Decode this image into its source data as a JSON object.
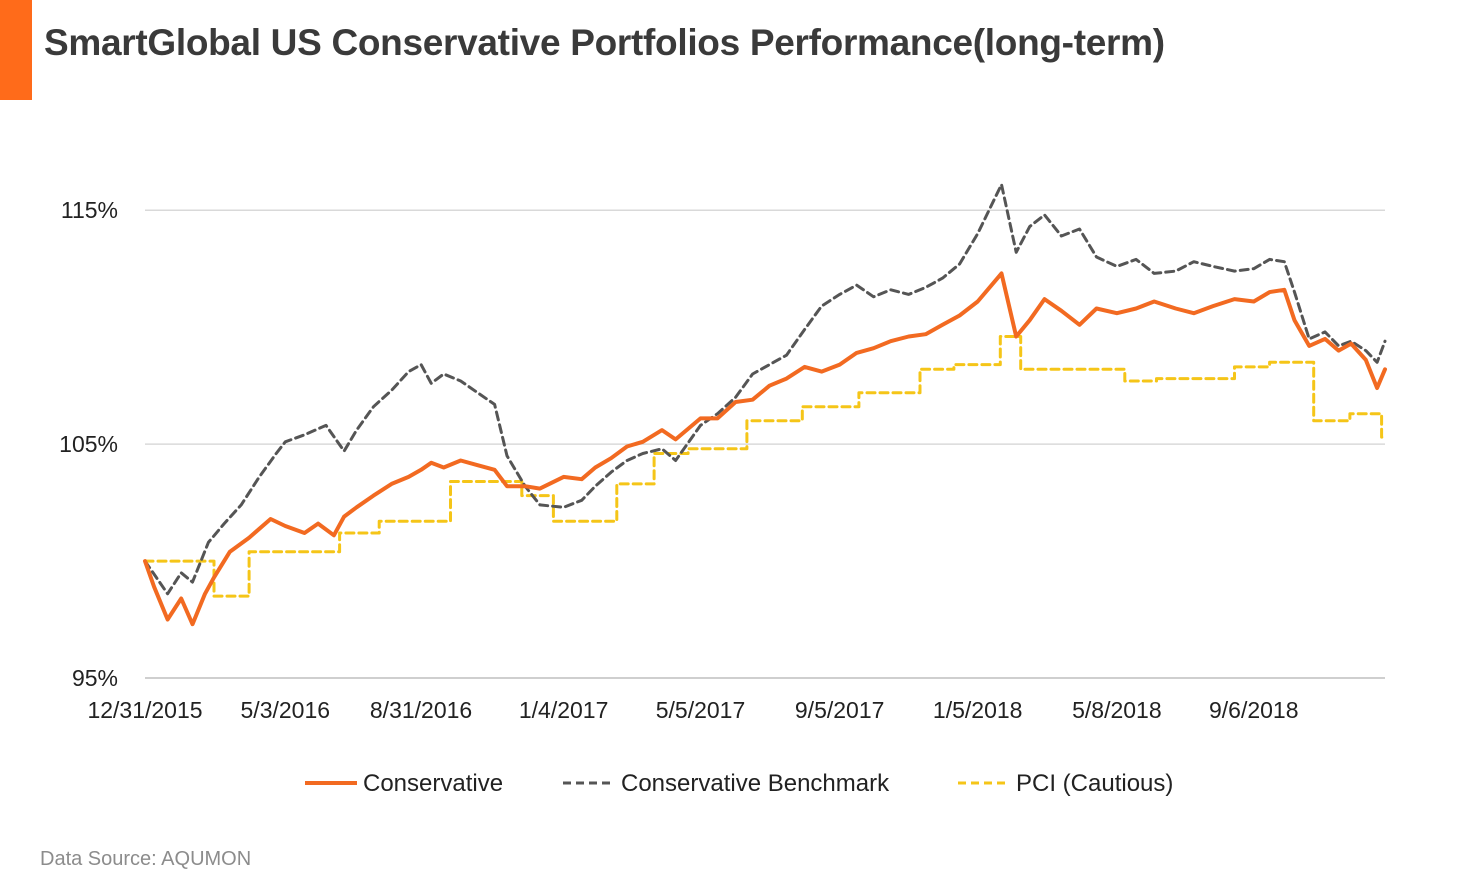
{
  "header": {
    "title": "SmartGlobal US Conservative Portfolios Performance(long-term)",
    "accent_color": "#FF6B1A"
  },
  "footer": {
    "source": "Data Source: AQUMON"
  },
  "chart_data": {
    "type": "line",
    "title": "SmartGlobal US Conservative Portfolios Performance(long-term)",
    "xlabel": "",
    "ylabel": "",
    "ylim": [
      95,
      119.5
    ],
    "grid": true,
    "legend_position": "bottom",
    "x_ticks": [
      "12/31/2015",
      "5/3/2016",
      "8/31/2016",
      "1/4/2017",
      "5/5/2017",
      "9/5/2017",
      "1/5/2018",
      "5/8/2018",
      "9/6/2018"
    ],
    "y_ticks": [
      {
        "value": 95,
        "label": "95%"
      },
      {
        "value": 105,
        "label": "105%"
      },
      {
        "value": 115,
        "label": "115%"
      }
    ],
    "series": [
      {
        "name": "Conservative",
        "color": "#F26A21",
        "style": "solid",
        "points": [
          [
            "2015-12-31",
            100.0
          ],
          [
            "2016-01-08",
            98.9
          ],
          [
            "2016-01-20",
            97.5
          ],
          [
            "2016-02-01",
            98.4
          ],
          [
            "2016-02-11",
            97.3
          ],
          [
            "2016-02-22",
            98.6
          ],
          [
            "2016-03-01",
            99.3
          ],
          [
            "2016-03-15",
            100.4
          ],
          [
            "2016-04-01",
            101.0
          ],
          [
            "2016-04-20",
            101.8
          ],
          [
            "2016-05-03",
            101.5
          ],
          [
            "2016-05-20",
            101.2
          ],
          [
            "2016-06-01",
            101.6
          ],
          [
            "2016-06-15",
            101.1
          ],
          [
            "2016-06-24",
            101.9
          ],
          [
            "2016-07-05",
            102.3
          ],
          [
            "2016-07-20",
            102.8
          ],
          [
            "2016-08-05",
            103.3
          ],
          [
            "2016-08-20",
            103.6
          ],
          [
            "2016-08-31",
            103.9
          ],
          [
            "2016-09-09",
            104.2
          ],
          [
            "2016-09-20",
            104.0
          ],
          [
            "2016-10-05",
            104.3
          ],
          [
            "2016-10-20",
            104.1
          ],
          [
            "2016-11-04",
            103.9
          ],
          [
            "2016-11-15",
            103.2
          ],
          [
            "2016-12-01",
            103.2
          ],
          [
            "2016-12-14",
            103.1
          ],
          [
            "2017-01-04",
            103.6
          ],
          [
            "2017-01-20",
            103.5
          ],
          [
            "2017-02-01",
            104.0
          ],
          [
            "2017-02-15",
            104.4
          ],
          [
            "2017-03-01",
            104.9
          ],
          [
            "2017-03-15",
            105.1
          ],
          [
            "2017-04-01",
            105.6
          ],
          [
            "2017-04-13",
            105.2
          ],
          [
            "2017-05-05",
            106.1
          ],
          [
            "2017-05-20",
            106.1
          ],
          [
            "2017-06-05",
            106.8
          ],
          [
            "2017-06-20",
            106.9
          ],
          [
            "2017-07-05",
            107.5
          ],
          [
            "2017-07-20",
            107.8
          ],
          [
            "2017-08-05",
            108.3
          ],
          [
            "2017-08-20",
            108.1
          ],
          [
            "2017-09-05",
            108.4
          ],
          [
            "2017-09-20",
            108.9
          ],
          [
            "2017-10-05",
            109.1
          ],
          [
            "2017-10-20",
            109.4
          ],
          [
            "2017-11-05",
            109.6
          ],
          [
            "2017-11-20",
            109.7
          ],
          [
            "2017-12-05",
            110.1
          ],
          [
            "2017-12-20",
            110.5
          ],
          [
            "2018-01-05",
            111.1
          ],
          [
            "2018-01-26",
            112.3
          ],
          [
            "2018-02-08",
            109.6
          ],
          [
            "2018-02-20",
            110.3
          ],
          [
            "2018-03-05",
            111.2
          ],
          [
            "2018-03-20",
            110.7
          ],
          [
            "2018-04-05",
            110.1
          ],
          [
            "2018-04-20",
            110.8
          ],
          [
            "2018-05-08",
            110.6
          ],
          [
            "2018-05-25",
            110.8
          ],
          [
            "2018-06-10",
            111.1
          ],
          [
            "2018-06-29",
            110.8
          ],
          [
            "2018-07-15",
            110.6
          ],
          [
            "2018-08-01",
            110.9
          ],
          [
            "2018-08-20",
            111.2
          ],
          [
            "2018-09-06",
            111.1
          ],
          [
            "2018-09-20",
            111.5
          ],
          [
            "2018-10-03",
            111.6
          ],
          [
            "2018-10-12",
            110.3
          ],
          [
            "2018-10-25",
            109.2
          ],
          [
            "2018-11-08",
            109.5
          ],
          [
            "2018-11-20",
            109.0
          ],
          [
            "2018-12-01",
            109.3
          ],
          [
            "2018-12-14",
            108.6
          ],
          [
            "2018-12-24",
            107.4
          ],
          [
            "2018-12-31",
            108.2
          ]
        ]
      },
      {
        "name": "Conservative Benchmark",
        "color": "#555555",
        "style": "dashed",
        "points": [
          [
            "2015-12-31",
            100.0
          ],
          [
            "2016-01-10",
            99.3
          ],
          [
            "2016-01-20",
            98.6
          ],
          [
            "2016-02-01",
            99.5
          ],
          [
            "2016-02-11",
            99.1
          ],
          [
            "2016-02-25",
            100.8
          ],
          [
            "2016-03-10",
            101.6
          ],
          [
            "2016-03-25",
            102.4
          ],
          [
            "2016-04-10",
            103.6
          ],
          [
            "2016-04-25",
            104.6
          ],
          [
            "2016-05-03",
            105.1
          ],
          [
            "2016-05-20",
            105.4
          ],
          [
            "2016-06-08",
            105.8
          ],
          [
            "2016-06-24",
            104.7
          ],
          [
            "2016-07-05",
            105.6
          ],
          [
            "2016-07-20",
            106.6
          ],
          [
            "2016-08-05",
            107.3
          ],
          [
            "2016-08-20",
            108.1
          ],
          [
            "2016-08-31",
            108.4
          ],
          [
            "2016-09-09",
            107.6
          ],
          [
            "2016-09-20",
            108.0
          ],
          [
            "2016-10-05",
            107.7
          ],
          [
            "2016-10-20",
            107.2
          ],
          [
            "2016-11-04",
            106.7
          ],
          [
            "2016-11-15",
            104.5
          ],
          [
            "2016-12-01",
            103.2
          ],
          [
            "2016-12-14",
            102.4
          ],
          [
            "2017-01-04",
            102.3
          ],
          [
            "2017-01-20",
            102.6
          ],
          [
            "2017-02-01",
            103.2
          ],
          [
            "2017-02-15",
            103.8
          ],
          [
            "2017-03-01",
            104.3
          ],
          [
            "2017-03-15",
            104.6
          ],
          [
            "2017-04-01",
            104.8
          ],
          [
            "2017-04-13",
            104.3
          ],
          [
            "2017-05-05",
            105.8
          ],
          [
            "2017-05-20",
            106.3
          ],
          [
            "2017-06-05",
            107.0
          ],
          [
            "2017-06-20",
            108.0
          ],
          [
            "2017-07-05",
            108.4
          ],
          [
            "2017-07-20",
            108.8
          ],
          [
            "2017-08-05",
            109.9
          ],
          [
            "2017-08-20",
            110.9
          ],
          [
            "2017-09-05",
            111.4
          ],
          [
            "2017-09-20",
            111.8
          ],
          [
            "2017-10-05",
            111.3
          ],
          [
            "2017-10-20",
            111.6
          ],
          [
            "2017-11-05",
            111.4
          ],
          [
            "2017-11-20",
            111.7
          ],
          [
            "2017-12-05",
            112.1
          ],
          [
            "2017-12-20",
            112.7
          ],
          [
            "2018-01-05",
            114.0
          ],
          [
            "2018-01-26",
            116.1
          ],
          [
            "2018-02-08",
            113.2
          ],
          [
            "2018-02-20",
            114.3
          ],
          [
            "2018-03-05",
            114.8
          ],
          [
            "2018-03-20",
            113.9
          ],
          [
            "2018-04-05",
            114.2
          ],
          [
            "2018-04-20",
            113.0
          ],
          [
            "2018-05-08",
            112.6
          ],
          [
            "2018-05-25",
            112.9
          ],
          [
            "2018-06-10",
            112.3
          ],
          [
            "2018-06-29",
            112.4
          ],
          [
            "2018-07-15",
            112.8
          ],
          [
            "2018-08-01",
            112.6
          ],
          [
            "2018-08-20",
            112.4
          ],
          [
            "2018-09-06",
            112.5
          ],
          [
            "2018-09-20",
            112.9
          ],
          [
            "2018-10-03",
            112.8
          ],
          [
            "2018-10-12",
            111.5
          ],
          [
            "2018-10-25",
            109.5
          ],
          [
            "2018-11-08",
            109.8
          ],
          [
            "2018-11-20",
            109.2
          ],
          [
            "2018-12-01",
            109.4
          ],
          [
            "2018-12-14",
            109.0
          ],
          [
            "2018-12-24",
            108.5
          ],
          [
            "2018-12-31",
            109.4
          ]
        ]
      },
      {
        "name": "PCI (Cautious)",
        "color": "#F5C518",
        "style": "dashed-step",
        "points": [
          [
            "2015-12-31",
            100.0
          ],
          [
            "2016-03-01",
            98.5
          ],
          [
            "2016-04-01",
            100.4
          ],
          [
            "2016-06-20",
            101.2
          ],
          [
            "2016-07-25",
            101.7
          ],
          [
            "2016-09-26",
            103.4
          ],
          [
            "2016-11-28",
            102.8
          ],
          [
            "2016-12-26",
            101.7
          ],
          [
            "2017-02-20",
            103.3
          ],
          [
            "2017-03-25",
            104.6
          ],
          [
            "2017-04-24",
            104.8
          ],
          [
            "2017-06-15",
            106.0
          ],
          [
            "2017-08-03",
            106.6
          ],
          [
            "2017-09-22",
            107.2
          ],
          [
            "2017-11-15",
            108.2
          ],
          [
            "2017-12-15",
            108.4
          ],
          [
            "2018-01-25",
            109.6
          ],
          [
            "2018-02-12",
            108.2
          ],
          [
            "2018-05-15",
            107.7
          ],
          [
            "2018-06-12",
            107.8
          ],
          [
            "2018-08-20",
            108.3
          ],
          [
            "2018-09-20",
            108.5
          ],
          [
            "2018-10-29",
            106.0
          ],
          [
            "2018-11-30",
            106.3
          ],
          [
            "2018-12-28",
            105.3
          ],
          [
            "2018-12-31",
            105.3
          ]
        ]
      }
    ]
  }
}
